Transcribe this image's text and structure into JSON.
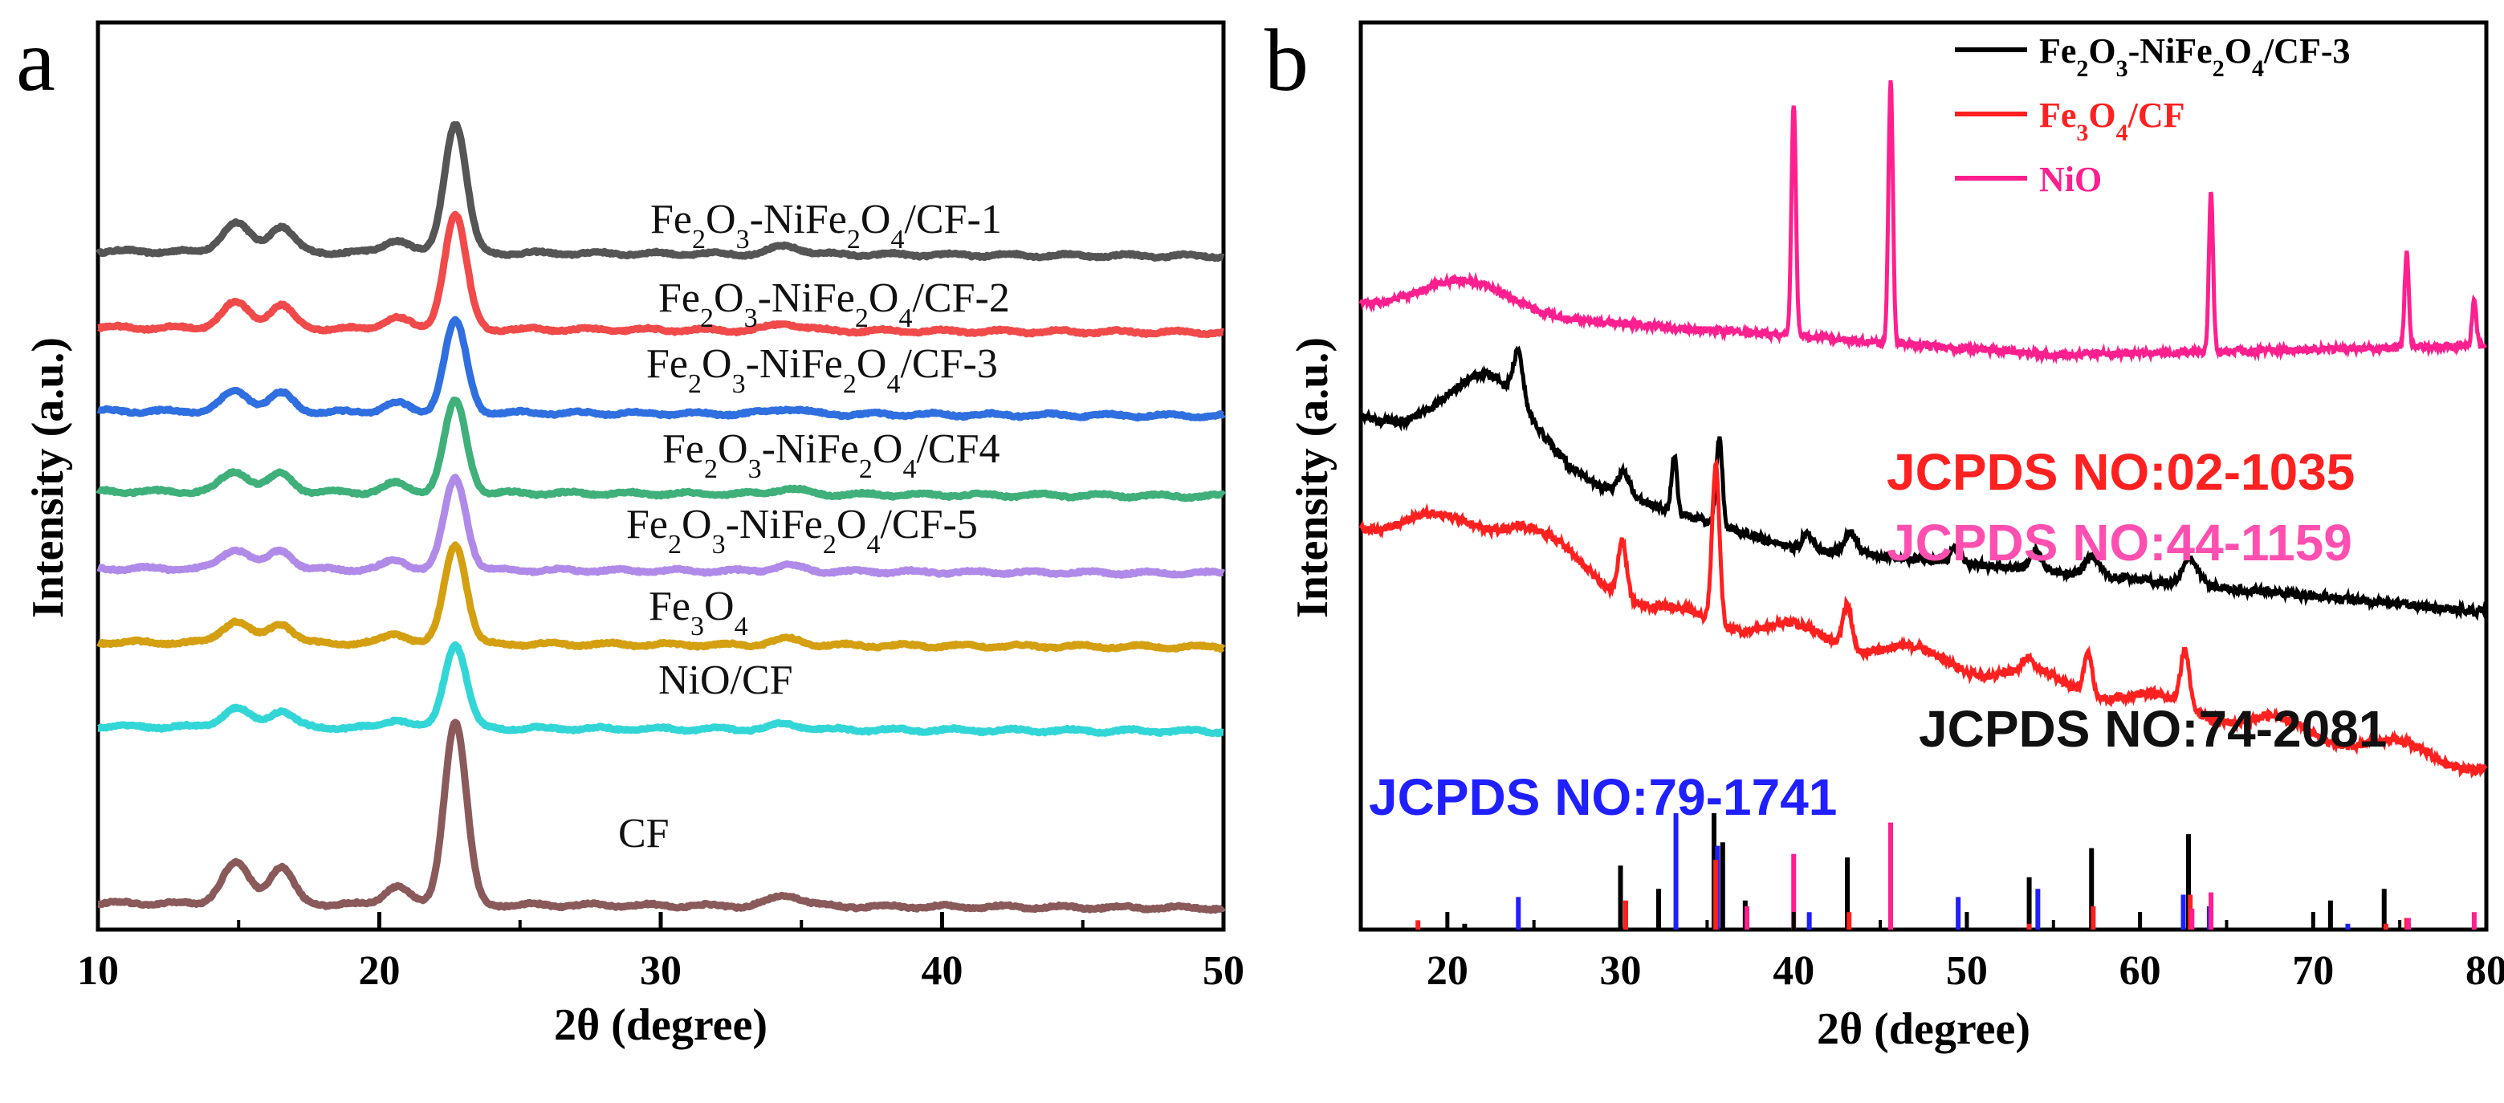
{
  "chart_data": [
    {
      "panel": "a",
      "type": "line",
      "xlabel": "2θ (degree)",
      "ylabel": "Intensity (a.u.)",
      "xlim": [
        10,
        50
      ],
      "xticks": [
        10,
        20,
        30,
        40,
        50
      ],
      "series": [
        {
          "name": "Fe2O3-NiFe2O4/CF-1",
          "label_html": "Fe<tspan baseline-shift=\"sub\" font-size=\"70%\">2</tspan>O<tspan baseline-shift=\"sub\" font-size=\"70%\">3</tspan>-NiFe<tspan baseline-shift=\"sub\" font-size=\"70%\">2</tspan>O<tspan baseline-shift=\"sub\" font-size=\"70%\">4</tspan>/CF-1",
          "color": "#555555",
          "offset": 7,
          "scale": 0.85
        },
        {
          "name": "Fe2O3-NiFe2O4/CF-2",
          "color": "#f04a4a",
          "offset": 6,
          "scale": 0.75
        },
        {
          "name": "Fe2O3-NiFe2O4/CF-3",
          "color": "#2f6fe0",
          "offset": 5,
          "scale": 0.6
        },
        {
          "name": "Fe2O3-NiFe2O4/CF4",
          "color": "#3fb07a",
          "offset": 4,
          "scale": 0.6
        },
        {
          "name": "Fe2O3-NiFe2O4/CF-5",
          "color": "#b08ae8",
          "offset": 3,
          "scale": 0.6
        },
        {
          "name": "Fe3O4",
          "color": "#d4a011",
          "offset": 2,
          "scale": 0.65
        },
        {
          "name": "NiO/CF",
          "color": "#33d6d6",
          "offset": 1,
          "scale": 0.55
        },
        {
          "name": "CF",
          "color": "#8a5a5a",
          "offset": 0,
          "scale": 1.2
        }
      ],
      "peaks": [
        {
          "x": 14.9,
          "h": 0.22,
          "w": 0.7
        },
        {
          "x": 16.5,
          "h": 0.2,
          "w": 0.6
        },
        {
          "x": 20.6,
          "h": 0.1,
          "w": 0.6
        },
        {
          "x": 22.7,
          "h": 1.0,
          "w": 0.55
        },
        {
          "x": 34.5,
          "h": 0.06,
          "w": 0.8
        }
      ]
    },
    {
      "panel": "b",
      "type": "line",
      "xlabel": "2θ (degree)",
      "ylabel": "Intensity (a.u.)",
      "xlim": [
        15,
        80
      ],
      "xticks": [
        20,
        30,
        40,
        50,
        60,
        70,
        80
      ],
      "legend": [
        "Fe2O3-NiFe2O4/CF-3",
        "Fe3O4/CF",
        "NiO"
      ],
      "legend_colors": [
        "#000000",
        "#ff2020",
        "#ff1f8e"
      ],
      "annotations": [
        "JCPDS NO:02-1035",
        "JCPDS NO:44-1159",
        "JCPDS NO:74-2081",
        "JCPDS NO:79-1741"
      ],
      "annotation_colors": [
        "#ff2020",
        "#ff4fb0",
        "#111111",
        "#1f1fff"
      ],
      "nio_peaks": [
        37.2,
        43.3,
        62.9,
        75.4,
        79.4
      ],
      "black_peaks": [
        24.1,
        30.2,
        33.1,
        35.6,
        40.8,
        43.3,
        49.4,
        54.0,
        57.5,
        62.9,
        64.0
      ],
      "red_peaks": [
        30.1,
        35.5,
        43.1,
        53.5,
        57.0,
        62.6
      ],
      "reference_lines": {
        "black": [
          {
            "x": 21.0,
            "h": 0.05
          },
          {
            "x": 30.0,
            "h": 0.55
          },
          {
            "x": 32.2,
            "h": 0.35
          },
          {
            "x": 35.4,
            "h": 1.0
          },
          {
            "x": 35.9,
            "h": 0.75
          },
          {
            "x": 37.2,
            "h": 0.25
          },
          {
            "x": 43.1,
            "h": 0.62
          },
          {
            "x": 53.6,
            "h": 0.45
          },
          {
            "x": 57.2,
            "h": 0.7
          },
          {
            "x": 62.8,
            "h": 0.82
          },
          {
            "x": 71.0,
            "h": 0.25
          },
          {
            "x": 74.1,
            "h": 0.35
          }
        ],
        "blue": [
          {
            "x": 24.1,
            "h": 0.28
          },
          {
            "x": 33.2,
            "h": 1.0
          },
          {
            "x": 35.6,
            "h": 0.72
          },
          {
            "x": 40.9,
            "h": 0.15
          },
          {
            "x": 49.5,
            "h": 0.28
          },
          {
            "x": 54.1,
            "h": 0.35
          },
          {
            "x": 62.5,
            "h": 0.3
          },
          {
            "x": 64.0,
            "h": 0.2
          },
          {
            "x": 72.0,
            "h": 0.05
          },
          {
            "x": 75.5,
            "h": 0.05
          }
        ],
        "red": [
          {
            "x": 18.3,
            "h": 0.08
          },
          {
            "x": 30.3,
            "h": 0.25
          },
          {
            "x": 35.5,
            "h": 0.6
          },
          {
            "x": 37.3,
            "h": 0.05
          },
          {
            "x": 43.2,
            "h": 0.15
          },
          {
            "x": 53.6,
            "h": 0.05
          },
          {
            "x": 57.3,
            "h": 0.2
          },
          {
            "x": 62.9,
            "h": 0.3
          },
          {
            "x": 74.2,
            "h": 0.05
          },
          {
            "x": 75.4,
            "h": 0.1
          }
        ],
        "magenta": [
          {
            "x": 37.3,
            "h": 0.2
          },
          {
            "x": 40.0,
            "h": 0.65
          },
          {
            "x": 45.6,
            "h": 0.92
          },
          {
            "x": 63.0,
            "h": 0.18
          },
          {
            "x": 64.1,
            "h": 0.32
          },
          {
            "x": 75.5,
            "h": 0.1
          },
          {
            "x": 79.3,
            "h": 0.15
          }
        ]
      }
    }
  ],
  "panel_labels": {
    "a": "a",
    "b": "b"
  },
  "texts": {
    "a_ylabel": "Intensity (a.u.)",
    "a_xlabel": "2θ (degree)",
    "b_ylabel": "Intensity (a.u.)",
    "b_xlabel": "2θ (degree)",
    "a_tick_labels": [
      "10",
      "20",
      "30",
      "40",
      "50"
    ],
    "b_tick_labels": [
      "20",
      "30",
      "40",
      "50",
      "60",
      "70",
      "80"
    ],
    "b_legend_1_text": "Fe2O3-NiFe2O4/CF-3",
    "b_legend_2_text": "Fe3O4/CF",
    "b_legend_3_text": "NiO",
    "b_ann_02_1035": "JCPDS NO:02-1035",
    "b_ann_44_1159": "JCPDS NO:44-1159",
    "b_ann_74_2081": "JCPDS NO:74-2081",
    "b_ann_79_1741": "JCPDS NO:79-1741"
  }
}
